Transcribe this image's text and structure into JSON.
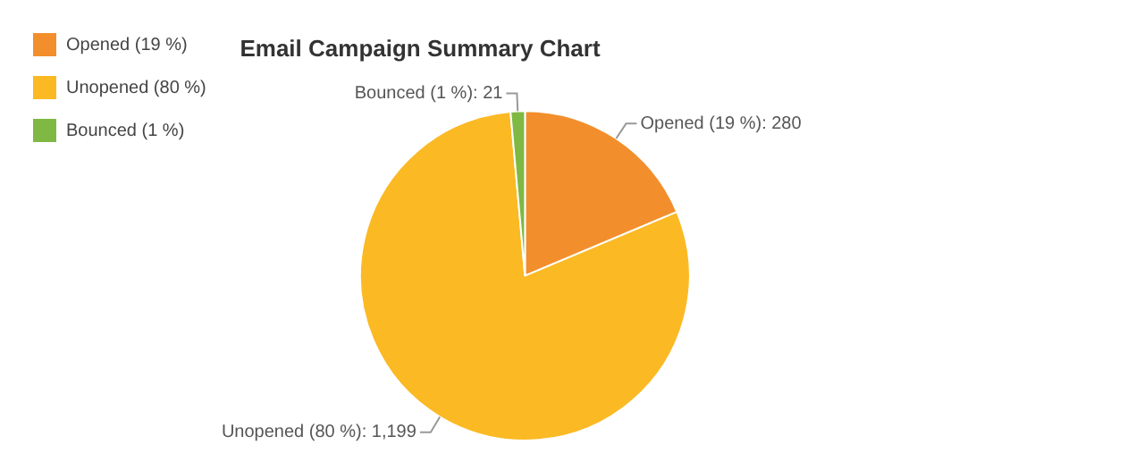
{
  "chart_data": {
    "type": "pie",
    "title": "Email Campaign Summary Chart",
    "categories": [
      "Opened (19 %)",
      "Unopened (80 %)",
      "Bounced (1 %)"
    ],
    "values": [
      280,
      1199,
      21
    ],
    "value_labels": [
      "Opened (19 %): 280",
      "Unopened (80 %): 1,199",
      "Bounced (1 %): 21"
    ],
    "colors": [
      "#f28f2c",
      "#fbb924",
      "#7fb843"
    ],
    "legend": "top left"
  }
}
